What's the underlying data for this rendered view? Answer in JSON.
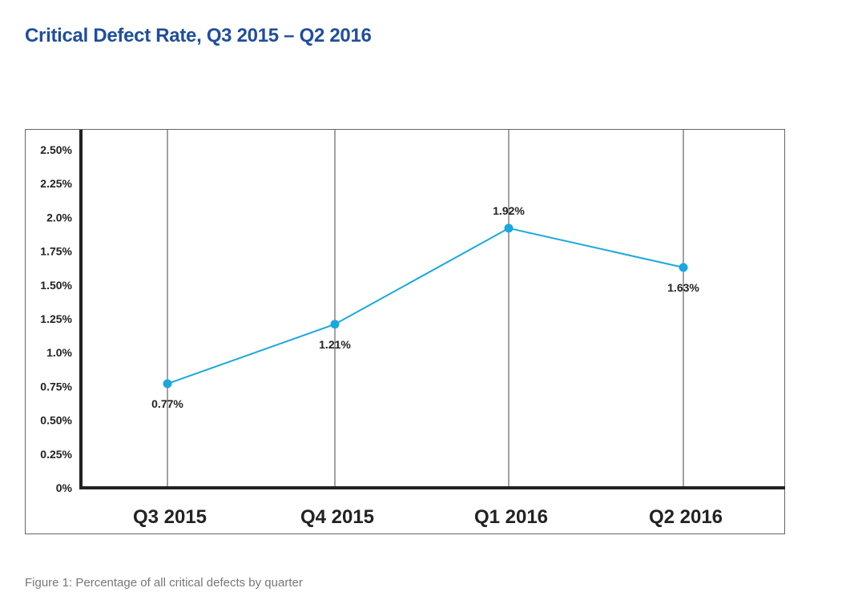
{
  "chart_data": {
    "type": "line",
    "title": "Critical Defect Rate, Q3 2015 – Q2 2016",
    "caption": "Figure 1: Percentage of all critical defects by quarter",
    "categories": [
      "Q3 2015",
      "Q4 2015",
      "Q1 2016",
      "Q2 2016"
    ],
    "values": [
      0.77,
      1.21,
      1.92,
      1.63
    ],
    "data_labels": [
      "0.77%",
      "1.21%",
      "1.92%",
      "1.63%"
    ],
    "ylim": [
      0,
      2.5
    ],
    "yticks": [
      0,
      0.25,
      0.5,
      0.75,
      1.0,
      1.25,
      1.5,
      1.75,
      2.0,
      2.25,
      2.5
    ],
    "ytick_labels": [
      "0%",
      "0.25%",
      "0.50%",
      "0.75%",
      "1.0%",
      "1.25%",
      "1.50%",
      "1.75%",
      "2.0%",
      "2.25%",
      "2.50%"
    ],
    "grid": "vertical lines at categories",
    "line_color": "#1ba8df",
    "title_color": "#1f4e9c"
  }
}
